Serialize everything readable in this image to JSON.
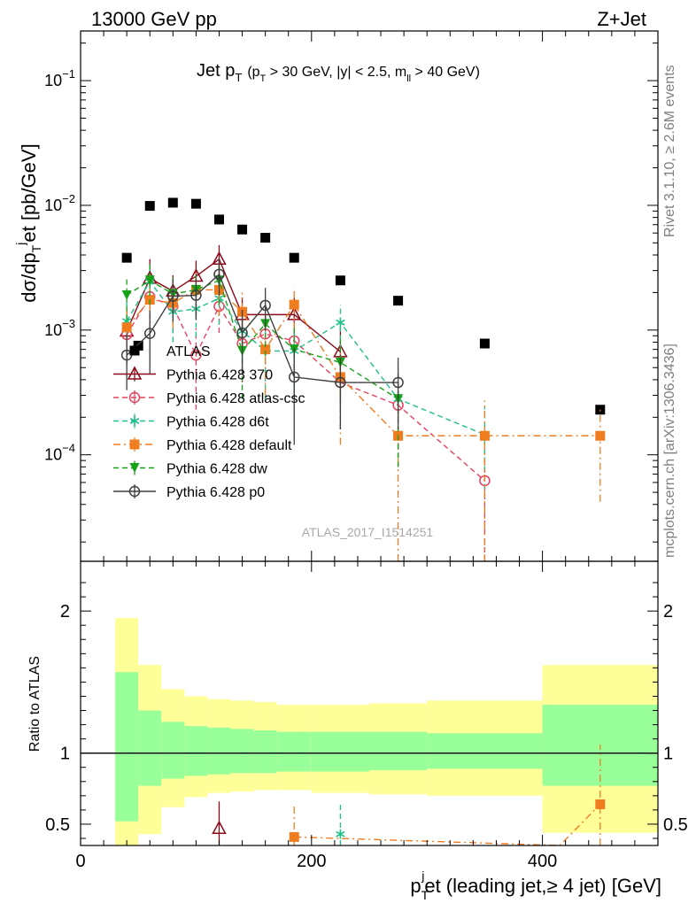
{
  "header": {
    "left": "13000 GeV pp",
    "right": "Z+Jet"
  },
  "side_labels": {
    "rivet": "Rivet 3.1.10, ≥ 2.6M events",
    "mcplots": "mcplots.cern.ch [arXiv:1306.3436]"
  },
  "chart_data": [
    {
      "type": "scatter",
      "title": {
        "main": "Jet p",
        "main_sub": "T",
        "cut_open": "(p",
        "cut_sub": "T",
        "cut_mid": " > 30 GeV, |y| < 2.5, m",
        "cut_sub2": "ll",
        "cut_close": " > 40 GeV)"
      },
      "watermark": "ATLAS_2017_I1514251",
      "ylabel": {
        "a": "dσ/dp",
        "sub": "T",
        "sup": "j",
        "b": "et [pb/GeV]"
      },
      "yscale": "log",
      "xlim": [
        0,
        500
      ],
      "ylim": [
        1.4e-05,
        0.25
      ],
      "y_ticks": [
        {
          "value": 0.1,
          "base": "10",
          "exp": "−1"
        },
        {
          "value": 0.01,
          "base": "10",
          "exp": "−2"
        },
        {
          "value": 0.001,
          "base": "10",
          "exp": "−3"
        },
        {
          "value": 0.0001,
          "base": "10",
          "exp": "−4"
        }
      ],
      "legend": "left",
      "series": [
        {
          "name": "ATLAS",
          "color": "#000000",
          "marker": "square",
          "line": "none",
          "x": [
            40,
            50,
            60,
            80,
            100,
            120,
            140,
            160,
            185,
            225,
            275,
            350,
            450
          ],
          "y": [
            0.0038,
            0.00075,
            0.0099,
            0.0105,
            0.0103,
            0.0077,
            0.0064,
            0.0055,
            0.0038,
            0.0025,
            0.00172,
            0.00078,
            0.00023
          ],
          "err": [
            0,
            0,
            0,
            0,
            0,
            0,
            0,
            0,
            0,
            0,
            0,
            0,
            0
          ]
        },
        {
          "name": "Pythia 6.428 370",
          "color": "#8b0a1a",
          "marker": "triangle-open",
          "line": "solid",
          "x": [
            40,
            60,
            80,
            100,
            120,
            140,
            185,
            225
          ],
          "y": [
            0.00098,
            0.0026,
            0.00205,
            0.0027,
            0.0037,
            0.00133,
            0.00133,
            0.00067
          ],
          "err": [
            0.00045,
            0.0011,
            0.0007,
            0.0009,
            0.0011,
            0.0005,
            0.0005,
            0.0004
          ]
        },
        {
          "name": "Pythia 6.428 atlas-csc",
          "color": "#e8415e",
          "marker": "circle-open",
          "line": "dashed",
          "x": [
            40,
            60,
            80,
            100,
            120,
            140,
            160,
            185,
            225,
            275,
            350
          ],
          "y": [
            0.00092,
            0.00185,
            0.00155,
            0.00063,
            0.00155,
            0.00078,
            0.00093,
            0.00082,
            0.00038,
            0.00025,
            6.2e-05
          ],
          "err": [
            0.0004,
            0.0008,
            0.0006,
            0.0004,
            0.0006,
            0.0004,
            0.0004,
            0.0004,
            0.00022,
            0.00017,
            5e-05
          ]
        },
        {
          "name": "Pythia 6.428 d6t",
          "color": "#1fc08a",
          "marker": "star",
          "line": "dashed",
          "x": [
            40,
            60,
            80,
            100,
            120,
            140,
            160,
            185,
            225,
            275,
            350
          ],
          "y": [
            0.00118,
            0.00245,
            0.0014,
            0.00148,
            0.0018,
            0.00098,
            0.00068,
            0.00068,
            0.00115,
            0.00028,
            0.000145
          ],
          "err": [
            0.0005,
            0.0009,
            0.0006,
            0.0006,
            0.0007,
            0.0005,
            0.0004,
            0.0004,
            0.00045,
            0.0002,
            0.0001
          ]
        },
        {
          "name": "Pythia 6.428 default",
          "color": "#f07c20",
          "marker": "square",
          "line": "dashdot",
          "x": [
            40,
            60,
            80,
            100,
            120,
            140,
            160,
            185,
            225,
            275,
            350,
            450
          ],
          "y": [
            0.00105,
            0.00175,
            0.00165,
            0.0021,
            0.0021,
            0.0014,
            0.0007,
            0.0016,
            0.00042,
            0.000142,
            0.000142,
            0.000142
          ],
          "err": [
            0.0005,
            0.0007,
            0.0006,
            0.0008,
            0.0008,
            0.0006,
            0.0004,
            0.0006,
            0.0003,
            0.00013,
            0.00013,
            0.0001
          ]
        },
        {
          "name": "Pythia 6.428 dw",
          "color": "#16a216",
          "marker": "triangle-down",
          "line": "dashed",
          "x": [
            40,
            60,
            80,
            100,
            120,
            140,
            160,
            185,
            225,
            275
          ],
          "y": [
            0.0019,
            0.0025,
            0.00195,
            0.0021,
            0.0025,
            0.00068,
            0.00112,
            0.0007,
            0.00055,
            0.00028
          ],
          "err": [
            0.0007,
            0.0009,
            0.0007,
            0.0008,
            0.0009,
            0.0004,
            0.0005,
            0.0004,
            0.0003,
            0.0002
          ]
        },
        {
          "name": "Pythia 6.428 p0",
          "color": "#3f3f3f",
          "marker": "circle-open",
          "line": "solid",
          "x": [
            40,
            60,
            80,
            100,
            120,
            140,
            160,
            185,
            225,
            275
          ],
          "y": [
            0.00063,
            0.00094,
            0.00187,
            0.0019,
            0.0028,
            0.00095,
            0.00158,
            0.00042,
            0.00038,
            0.00038
          ],
          "err": [
            0.0003,
            0.0005,
            0.0007,
            0.0007,
            0.0009,
            0.0005,
            0.0006,
            0.0003,
            0.00022,
            0.00022
          ]
        }
      ]
    },
    {
      "type": "area",
      "ylabel": "Ratio to ATLAS",
      "xlabel": {
        "a": "p",
        "sub": "T",
        "sup": "j",
        "b": "et (leading jet,≥ 4 jet) [GeV]"
      },
      "xlim": [
        0,
        500
      ],
      "ylim": [
        0.35,
        2.35
      ],
      "x_ticks": [
        "0",
        "200",
        "400"
      ],
      "y_ticks": [
        "0.5",
        "1",
        "2"
      ],
      "bands": {
        "edges": [
          30,
          50,
          70,
          90,
          110,
          130,
          150,
          170,
          200,
          250,
          300,
          400,
          500
        ],
        "yellow_lo": [
          0.32,
          0.43,
          0.62,
          0.69,
          0.72,
          0.73,
          0.74,
          0.74,
          0.72,
          0.71,
          0.7,
          0.44
        ],
        "yellow_hi": [
          1.95,
          1.62,
          1.45,
          1.4,
          1.38,
          1.37,
          1.36,
          1.34,
          1.34,
          1.35,
          1.37,
          1.62
        ],
        "green_lo": [
          0.52,
          0.77,
          0.82,
          0.84,
          0.85,
          0.86,
          0.86,
          0.87,
          0.87,
          0.88,
          0.89,
          0.77
        ],
        "green_hi": [
          1.57,
          1.3,
          1.22,
          1.19,
          1.18,
          1.17,
          1.16,
          1.15,
          1.15,
          1.15,
          1.14,
          1.34
        ]
      },
      "series": [
        {
          "name": "Pythia 6.428 370",
          "color": "#8b0a1a",
          "marker": "triangle-open",
          "line": "solid",
          "x": [
            120
          ],
          "y": [
            0.47
          ],
          "err": [
            0.19
          ]
        },
        {
          "name": "Pythia 6.428 default",
          "color": "#f07c20",
          "marker": "square",
          "line": "dashdot",
          "x": [
            185,
            415,
            450
          ],
          "y": [
            0.41,
            0.32,
            0.64
          ],
          "err": [
            0.23,
            0,
            0.42
          ]
        },
        {
          "name": "Pythia 6.428 d6t",
          "color": "#1fc08a",
          "marker": "star",
          "line": "dashed",
          "x": [
            225
          ],
          "y": [
            0.43
          ],
          "err": [
            0.23
          ]
        }
      ]
    }
  ]
}
